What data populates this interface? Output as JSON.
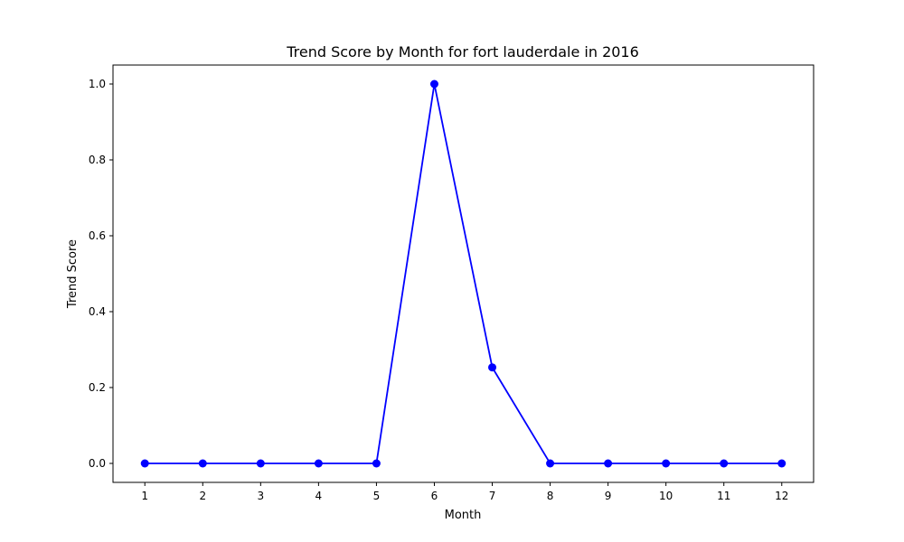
{
  "chart_data": {
    "type": "line",
    "title": "Trend Score by Month for fort lauderdale in 2016",
    "xlabel": "Month",
    "ylabel": "Trend Score",
    "x": [
      1,
      2,
      3,
      4,
      5,
      6,
      7,
      8,
      9,
      10,
      11,
      12
    ],
    "series": [
      {
        "values": [
          0.0,
          0.0,
          0.0,
          0.0,
          0.0,
          1.0,
          0.253,
          0.0,
          0.0,
          0.0,
          0.0,
          0.0
        ],
        "color": "#0000ff",
        "marker": "circle"
      }
    ],
    "xticks": [
      "1",
      "2",
      "3",
      "4",
      "5",
      "6",
      "7",
      "8",
      "9",
      "10",
      "11",
      "12"
    ],
    "yticks": [
      "0.0",
      "0.2",
      "0.4",
      "0.6",
      "0.8",
      "1.0"
    ],
    "xlim": [
      0.45,
      12.55
    ],
    "ylim": [
      -0.05,
      1.05
    ],
    "grid": false,
    "legend": "none"
  }
}
